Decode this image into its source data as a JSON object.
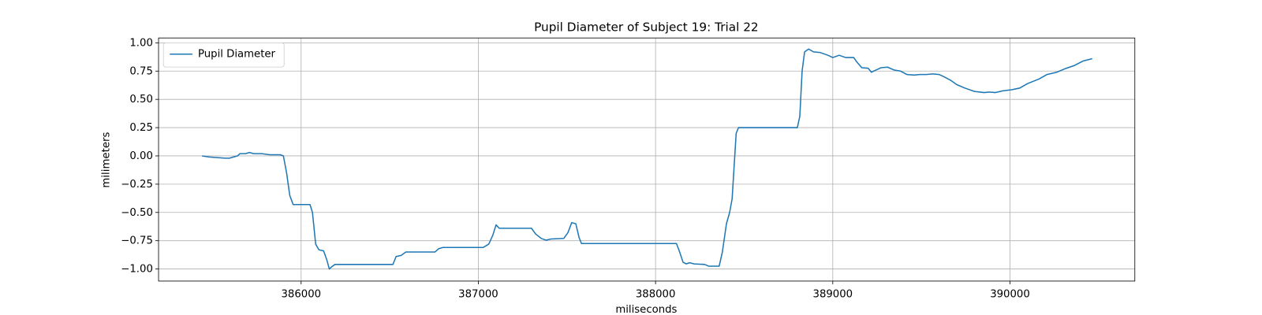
{
  "chart_data": {
    "type": "line",
    "title": "Pupil Diameter of Subject 19: Trial 22",
    "x_label": "miliseconds",
    "y_label": "milimeters",
    "xlim": [
      385195.5,
      390704.5
    ],
    "ylim": [
      -1.107,
      1.043
    ],
    "xticks": [
      386000,
      387000,
      388000,
      389000,
      390000
    ],
    "yticks": [
      {
        "value": -1.0,
        "label": "−1.00"
      },
      {
        "value": -0.75,
        "label": "−0.75"
      },
      {
        "value": -0.5,
        "label": "−0.50"
      },
      {
        "value": -0.25,
        "label": "−0.25"
      },
      {
        "value": 0.0,
        "label": "0.00"
      },
      {
        "value": 0.25,
        "label": "0.25"
      },
      {
        "value": 0.5,
        "label": "0.50"
      },
      {
        "value": 0.75,
        "label": "0.75"
      },
      {
        "value": 1.0,
        "label": "1.00"
      }
    ],
    "grid": true,
    "legend": "upper left",
    "x": [
      385441,
      385482,
      385527,
      385573,
      385595,
      385618,
      385641,
      385655,
      385686,
      385709,
      385732,
      385777,
      385823,
      385845,
      385882,
      385900,
      385918,
      385936,
      385955,
      386050,
      386064,
      386082,
      386100,
      386127,
      386145,
      386159,
      386173,
      386191,
      386518,
      386536,
      386564,
      386591,
      386755,
      386777,
      386800,
      387027,
      387059,
      387082,
      387100,
      387118,
      387300,
      387323,
      387355,
      387382,
      387409,
      387482,
      387505,
      387527,
      387550,
      387568,
      387582,
      388118,
      388136,
      388155,
      388173,
      388191,
      388218,
      388277,
      388300,
      388359,
      388377,
      388400,
      388418,
      388432,
      388445,
      388455,
      388468,
      388800,
      388814,
      388827,
      388841,
      388864,
      388891,
      388927,
      388973,
      389000,
      389036,
      389073,
      389118,
      389136,
      389164,
      389200,
      389218,
      389245,
      389273,
      389309,
      389345,
      389382,
      389418,
      389459,
      389491,
      389527,
      389564,
      389600,
      389627,
      389664,
      389700,
      389745,
      389800,
      389855,
      389882,
      389918,
      389959,
      390009,
      390055,
      390100,
      390164,
      390209,
      390264,
      390309,
      390364,
      390414,
      390464
    ],
    "series": [
      {
        "name": "Pupil Diameter",
        "color": "#1f77b4",
        "values": [
          0.0,
          -0.01,
          -0.015,
          -0.02,
          -0.02,
          -0.01,
          0.0,
          0.02,
          0.02,
          0.03,
          0.02,
          0.02,
          0.01,
          0.01,
          0.01,
          0.0,
          -0.15,
          -0.35,
          -0.43,
          -0.43,
          -0.5,
          -0.78,
          -0.83,
          -0.84,
          -0.92,
          -1.0,
          -0.98,
          -0.96,
          -0.96,
          -0.89,
          -0.88,
          -0.85,
          -0.85,
          -0.82,
          -0.81,
          -0.81,
          -0.78,
          -0.7,
          -0.61,
          -0.64,
          -0.64,
          -0.69,
          -0.73,
          -0.745,
          -0.735,
          -0.73,
          -0.68,
          -0.59,
          -0.6,
          -0.72,
          -0.775,
          -0.775,
          -0.85,
          -0.94,
          -0.955,
          -0.945,
          -0.955,
          -0.96,
          -0.975,
          -0.975,
          -0.85,
          -0.6,
          -0.5,
          -0.38,
          -0.05,
          0.2,
          0.25,
          0.25,
          0.35,
          0.75,
          0.92,
          0.945,
          0.92,
          0.915,
          0.89,
          0.87,
          0.89,
          0.87,
          0.87,
          0.83,
          0.78,
          0.775,
          0.74,
          0.76,
          0.78,
          0.785,
          0.76,
          0.75,
          0.72,
          0.715,
          0.72,
          0.72,
          0.725,
          0.72,
          0.7,
          0.67,
          0.63,
          0.6,
          0.57,
          0.56,
          0.565,
          0.56,
          0.575,
          0.585,
          0.6,
          0.64,
          0.68,
          0.72,
          0.74,
          0.77,
          0.8,
          0.84,
          0.86
        ]
      }
    ]
  }
}
